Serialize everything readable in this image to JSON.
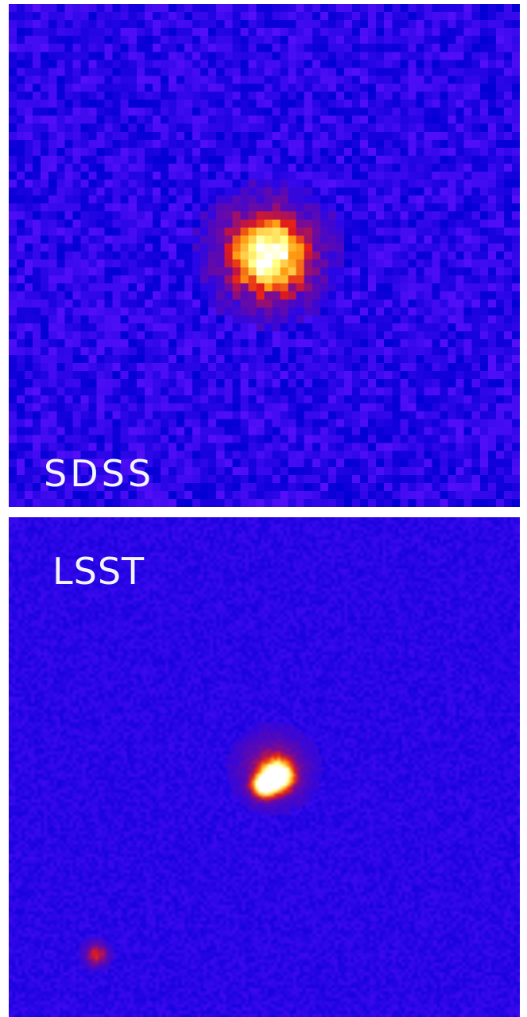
{
  "panels": {
    "top": {
      "label": "SDSS"
    },
    "bottom": {
      "label": "LSST"
    }
  },
  "colormap": {
    "background": "#2a06e6",
    "low": "#e21a1a",
    "mid": "#ff9a10",
    "high": "#ffff80",
    "peak": "#ffffff"
  }
}
